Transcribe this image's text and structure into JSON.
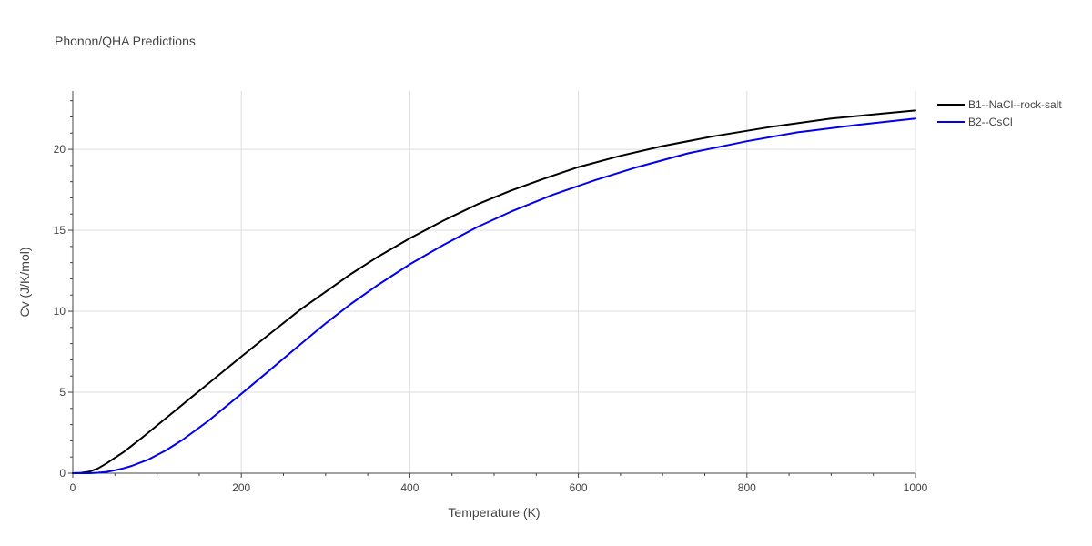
{
  "chart_data": {
    "type": "line",
    "title": "Phonon/QHA Predictions",
    "xlabel": "Temperature (K)",
    "ylabel": "Cv (J/K/mol)",
    "xlim": [
      0,
      1000
    ],
    "ylim": [
      0,
      23.6
    ],
    "xticks": [
      0,
      200,
      400,
      600,
      800,
      1000
    ],
    "xtick_labels": [
      "0",
      "200",
      "400",
      "600",
      "800",
      "1000"
    ],
    "yticks": [
      0,
      5,
      10,
      15,
      20
    ],
    "ytick_labels": [
      "0",
      "5",
      "10",
      "15",
      "20"
    ],
    "grid": true,
    "legend_position": "top-right",
    "series": [
      {
        "name": "B1--NaCl--rock-salt",
        "color": "#000000",
        "x": [
          0,
          10,
          20,
          30,
          40,
          50,
          60,
          80,
          100,
          120,
          140,
          160,
          180,
          200,
          230,
          270,
          300,
          330,
          360,
          400,
          440,
          480,
          520,
          560,
          600,
          650,
          700,
          760,
          830,
          900,
          960,
          1000
        ],
        "y": [
          0,
          0.02,
          0.1,
          0.3,
          0.6,
          0.95,
          1.3,
          2.1,
          2.95,
          3.8,
          4.65,
          5.5,
          6.35,
          7.2,
          8.45,
          10.1,
          11.2,
          12.3,
          13.3,
          14.5,
          15.6,
          16.6,
          17.45,
          18.2,
          18.9,
          19.6,
          20.2,
          20.8,
          21.4,
          21.9,
          22.2,
          22.4
        ]
      },
      {
        "name": "B2--CsCl",
        "color": "#0000ee",
        "x": [
          0,
          20,
          30,
          40,
          50,
          60,
          70,
          90,
          110,
          130,
          160,
          200,
          230,
          270,
          300,
          330,
          360,
          400,
          440,
          480,
          520,
          570,
          620,
          670,
          730,
          800,
          860,
          930,
          1000
        ],
        "y": [
          0,
          0.0,
          0.03,
          0.08,
          0.18,
          0.3,
          0.45,
          0.85,
          1.4,
          2.05,
          3.2,
          4.9,
          6.2,
          7.95,
          9.25,
          10.45,
          11.55,
          12.9,
          14.1,
          15.2,
          16.15,
          17.2,
          18.1,
          18.9,
          19.75,
          20.5,
          21.05,
          21.5,
          21.9
        ]
      }
    ]
  }
}
